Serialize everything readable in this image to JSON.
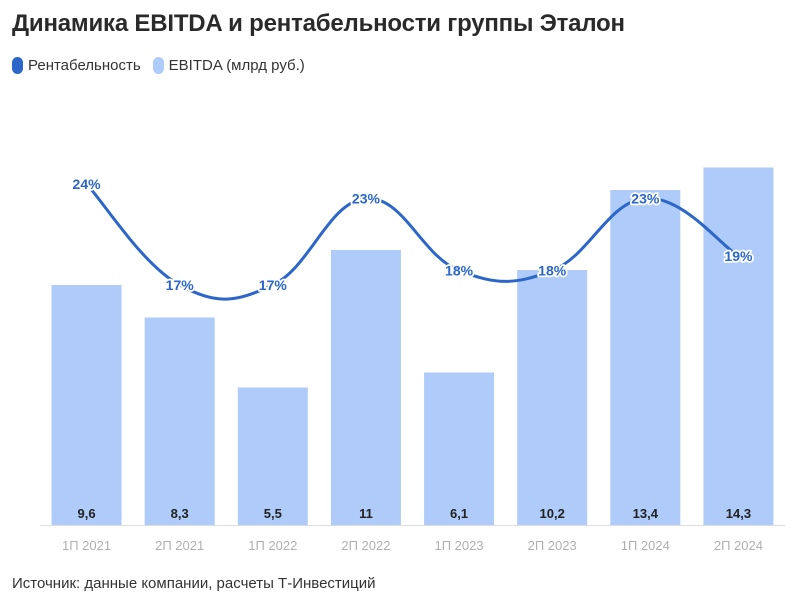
{
  "title": "Динамика EBITDA и рентабельности группы Эталон",
  "legend": [
    {
      "label": "Рентабельность",
      "color": "#2b66c8"
    },
    {
      "label": "EBITDA (млрд руб.)",
      "color": "#aecbfa"
    }
  ],
  "source": "Источник: данные компании, расчеты Т-Инвестиций",
  "chart_data": {
    "type": "bar",
    "categories": [
      "1П 2021",
      "2П 2021",
      "1П 2022",
      "2П 2022",
      "1П 2023",
      "2П 2023",
      "1П 2024",
      "2П 2024"
    ],
    "series": [
      {
        "name": "EBITDA (млрд руб.)",
        "type": "bar",
        "values": [
          9.6,
          8.3,
          5.5,
          11,
          6.1,
          10.2,
          13.4,
          14.3
        ],
        "labels": [
          "9,6",
          "8,3",
          "5,5",
          "11",
          "6,1",
          "10,2",
          "13,4",
          "14,3"
        ],
        "color": "#aecbfa"
      },
      {
        "name": "Рентабельность",
        "type": "line",
        "values": [
          24,
          17,
          17,
          23,
          18,
          18,
          23,
          19
        ],
        "labels": [
          "24%",
          "17%",
          "17%",
          "23%",
          "18%",
          "18%",
          "23%",
          "19%"
        ],
        "color": "#2b66c8"
      }
    ],
    "ylim_bar": [
      0,
      17.0
    ],
    "ylim_line": [
      0,
      40
    ],
    "grid": false,
    "legend_position": "top-left"
  }
}
